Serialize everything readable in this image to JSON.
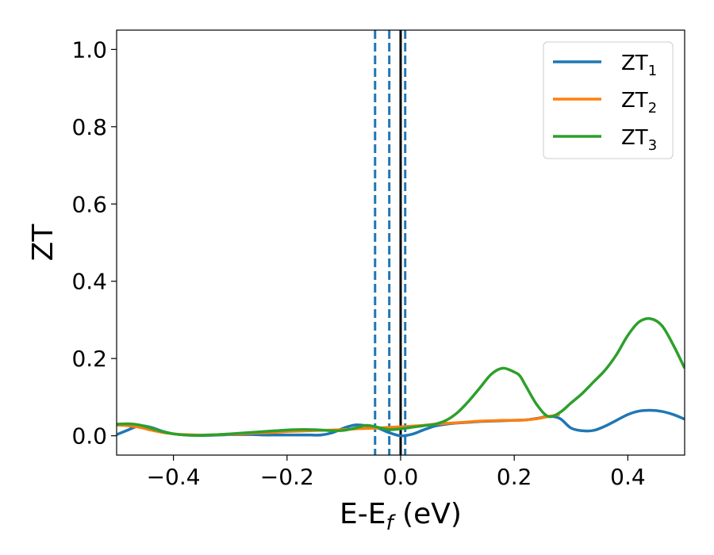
{
  "chart_data": {
    "type": "line",
    "xlabel": "E-E",
    "xlabel_sub": "f",
    "xlabel_unit": " (eV)",
    "ylabel": "ZT",
    "xlim": [
      -0.5,
      0.5
    ],
    "ylim": [
      -0.05,
      1.05
    ],
    "xticks": [
      -0.4,
      -0.2,
      0.0,
      0.2,
      0.4
    ],
    "xtick_labels": [
      "−0.4",
      "−0.2",
      "0.0",
      "0.2",
      "0.4"
    ],
    "yticks": [
      0.0,
      0.2,
      0.4,
      0.6,
      0.8,
      1.0
    ],
    "ytick_labels": [
      "0.0",
      "0.2",
      "0.4",
      "0.6",
      "0.8",
      "1.0"
    ],
    "legend_position": "top-right",
    "grid": false,
    "vlines": [
      {
        "x": -0.045,
        "style": "dashed",
        "color": "#1f77b4"
      },
      {
        "x": -0.02,
        "style": "dashed",
        "color": "#1f77b4"
      },
      {
        "x": 0.008,
        "style": "dashed",
        "color": "#1f77b4"
      },
      {
        "x": 0.0,
        "style": "solid",
        "color": "#000000"
      }
    ],
    "series": [
      {
        "name": "ZT",
        "sub": "1",
        "color": "#1f77b4",
        "x": [
          -0.5,
          -0.48,
          -0.46,
          -0.44,
          -0.42,
          -0.4,
          -0.38,
          -0.36,
          -0.34,
          -0.32,
          -0.3,
          -0.28,
          -0.26,
          -0.24,
          -0.22,
          -0.2,
          -0.18,
          -0.16,
          -0.14,
          -0.12,
          -0.1,
          -0.08,
          -0.06,
          -0.04,
          -0.02,
          0.0,
          0.02,
          0.04,
          0.06,
          0.08,
          0.1,
          0.12,
          0.14,
          0.16,
          0.18,
          0.2,
          0.22,
          0.24,
          0.26,
          0.28,
          0.3,
          0.32,
          0.34,
          0.36,
          0.38,
          0.4,
          0.42,
          0.44,
          0.46,
          0.48,
          0.5
        ],
        "y": [
          0.003,
          0.015,
          0.026,
          0.022,
          0.012,
          0.005,
          0.002,
          0.001,
          0.001,
          0.002,
          0.003,
          0.003,
          0.003,
          0.002,
          0.002,
          0.002,
          0.002,
          0.002,
          0.002,
          0.008,
          0.02,
          0.028,
          0.026,
          0.02,
          0.008,
          0.0,
          0.004,
          0.015,
          0.025,
          0.03,
          0.033,
          0.035,
          0.037,
          0.038,
          0.039,
          0.04,
          0.041,
          0.045,
          0.05,
          0.045,
          0.02,
          0.013,
          0.014,
          0.025,
          0.04,
          0.055,
          0.064,
          0.066,
          0.063,
          0.055,
          0.043
        ]
      },
      {
        "name": "ZT",
        "sub": "2",
        "color": "#ff7f0e",
        "x": [
          -0.5,
          -0.48,
          -0.46,
          -0.44,
          -0.42,
          -0.4,
          -0.38,
          -0.36,
          -0.34,
          -0.32,
          -0.3,
          -0.28,
          -0.26,
          -0.24,
          -0.22,
          -0.2,
          -0.18,
          -0.16,
          -0.14,
          -0.12,
          -0.1,
          -0.08,
          -0.06,
          -0.04,
          -0.02,
          0.0,
          0.02,
          0.04,
          0.06,
          0.08,
          0.1,
          0.12,
          0.14,
          0.16,
          0.18,
          0.2,
          0.22,
          0.24,
          0.26,
          0.28
        ],
        "y": [
          0.028,
          0.026,
          0.022,
          0.015,
          0.009,
          0.005,
          0.003,
          0.002,
          0.002,
          0.003,
          0.004,
          0.005,
          0.007,
          0.008,
          0.009,
          0.011,
          0.012,
          0.013,
          0.014,
          0.015,
          0.016,
          0.018,
          0.019,
          0.02,
          0.022,
          0.023,
          0.025,
          0.027,
          0.03,
          0.032,
          0.034,
          0.036,
          0.038,
          0.039,
          0.04,
          0.04,
          0.041,
          0.044,
          0.05,
          0.055
        ]
      },
      {
        "name": "ZT",
        "sub": "3",
        "color": "#2ca02c",
        "x": [
          -0.5,
          -0.48,
          -0.46,
          -0.44,
          -0.42,
          -0.4,
          -0.38,
          -0.36,
          -0.34,
          -0.32,
          -0.3,
          -0.28,
          -0.26,
          -0.24,
          -0.22,
          -0.2,
          -0.18,
          -0.16,
          -0.14,
          -0.12,
          -0.1,
          -0.08,
          -0.06,
          -0.04,
          -0.02,
          0.0,
          0.02,
          0.04,
          0.06,
          0.08,
          0.1,
          0.12,
          0.14,
          0.16,
          0.18,
          0.2,
          0.21,
          0.22,
          0.24,
          0.26,
          0.28,
          0.3,
          0.32,
          0.34,
          0.36,
          0.38,
          0.4,
          0.42,
          0.44,
          0.46,
          0.48,
          0.5
        ],
        "y": [
          0.03,
          0.031,
          0.028,
          0.02,
          0.011,
          0.005,
          0.002,
          0.001,
          0.002,
          0.003,
          0.005,
          0.007,
          0.009,
          0.011,
          0.013,
          0.015,
          0.016,
          0.016,
          0.015,
          0.013,
          0.014,
          0.02,
          0.027,
          0.022,
          0.016,
          0.018,
          0.022,
          0.026,
          0.03,
          0.04,
          0.06,
          0.09,
          0.125,
          0.16,
          0.175,
          0.165,
          0.155,
          0.13,
          0.08,
          0.05,
          0.06,
          0.085,
          0.11,
          0.14,
          0.17,
          0.21,
          0.26,
          0.295,
          0.303,
          0.285,
          0.235,
          0.175
        ]
      }
    ]
  }
}
